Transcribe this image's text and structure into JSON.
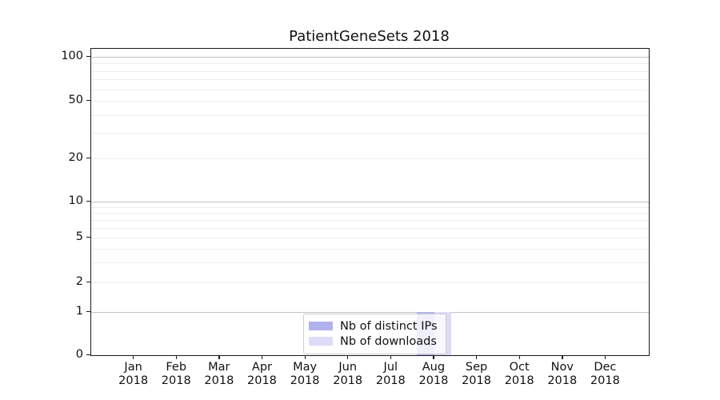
{
  "chart_data": {
    "type": "bar",
    "title": "PatientGeneSets 2018",
    "xlabel": "",
    "ylabel": "",
    "yscale": "symlog",
    "ylim": [
      0,
      104
    ],
    "yticks": [
      0,
      1,
      2,
      5,
      10,
      20,
      50,
      100
    ],
    "minor_yticks": [
      3,
      4,
      6,
      7,
      8,
      9,
      30,
      40,
      60,
      70,
      80,
      90
    ],
    "grid": true,
    "categories": [
      "Jan 2018",
      "Feb 2018",
      "Mar 2018",
      "Apr 2018",
      "May 2018",
      "Jun 2018",
      "Jul 2018",
      "Aug 2018",
      "Sep 2018",
      "Oct 2018",
      "Nov 2018",
      "Dec 2018"
    ],
    "series": [
      {
        "name": "Nb of distinct IPs",
        "color": "#b2b2ef",
        "values": [
          0,
          0,
          0,
          0,
          0,
          0,
          0,
          1,
          0,
          0,
          0,
          0
        ]
      },
      {
        "name": "Nb of downloads",
        "color": "#dcdcf8",
        "values": [
          0,
          0,
          0,
          0,
          0,
          0,
          0,
          1,
          0,
          0,
          0,
          0
        ]
      }
    ],
    "legend_position": "lower center"
  },
  "colors": {
    "major_grid": "#c3c3c3",
    "minor_grid": "#ececec",
    "spine": "#1a1a1a"
  }
}
